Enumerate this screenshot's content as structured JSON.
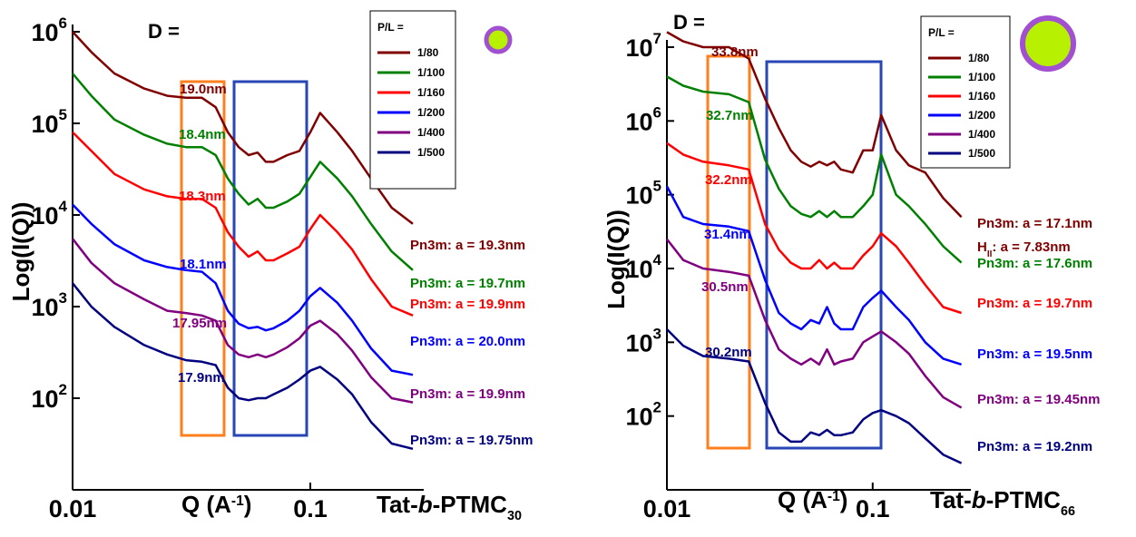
{
  "chart_data": [
    {
      "type": "line",
      "log_x": true,
      "log_y": true,
      "legend": "top-right",
      "y_label": "Log(I(Q))",
      "x_label": [
        {
          "text": "Q (A"
        },
        {
          "text": "-1",
          "shift": "sup"
        },
        {
          "text": ")"
        }
      ],
      "sample_label": [
        {
          "text": "Tat-"
        },
        {
          "text": "b",
          "shift": "italic"
        },
        {
          "text": "-PTMC"
        },
        {
          "text": "30",
          "shift": "sub"
        }
      ],
      "d_title": "D =",
      "legend_title": "P/L =",
      "xlim": [
        0.01,
        0.3
      ],
      "ylim": [
        10,
        1000000
      ],
      "xticks": [
        0.01,
        0.1
      ],
      "yticks": [
        {
          "value": 100,
          "label": "10",
          "exponent": "2"
        },
        {
          "value": 1000,
          "label": "10",
          "exponent": "3"
        },
        {
          "value": 10000,
          "label": "10",
          "exponent": "4"
        },
        {
          "value": 100000,
          "label": "10",
          "exponent": "5"
        },
        {
          "value": 1000000,
          "label": "10",
          "exponent": "6"
        }
      ],
      "x": [
        0.01,
        0.012,
        0.015,
        0.02,
        0.025,
        0.03,
        0.035,
        0.04,
        0.045,
        0.05,
        0.055,
        0.06,
        0.065,
        0.07,
        0.08,
        0.09,
        0.1,
        0.11,
        0.13,
        0.15,
        0.18,
        0.22,
        0.27
      ],
      "series": [
        {
          "name": "1/80",
          "color": "#800000",
          "values": [
            1000000,
            600000,
            350000,
            240000,
            200000,
            190000,
            190000,
            150000,
            80000,
            55000,
            45000,
            48000,
            38000,
            38000,
            45000,
            50000,
            80000,
            130000,
            80000,
            50000,
            25000,
            12000,
            8000
          ]
        },
        {
          "name": "1/100",
          "color": "#008000",
          "values": [
            350000,
            200000,
            110000,
            75000,
            60000,
            55000,
            55000,
            45000,
            25000,
            17000,
            13000,
            15000,
            12000,
            12000,
            14000,
            17000,
            26000,
            38000,
            25000,
            16000,
            8000,
            4000,
            2500
          ]
        },
        {
          "name": "1/160",
          "color": "#ff0000",
          "values": [
            80000,
            50000,
            28000,
            19000,
            16000,
            15000,
            15000,
            12000,
            6500,
            4500,
            3500,
            4000,
            3200,
            3200,
            3800,
            4500,
            7000,
            10000,
            6500,
            4200,
            2000,
            1000,
            800
          ]
        },
        {
          "name": "1/200",
          "color": "#0000ff",
          "values": [
            13000,
            8000,
            4800,
            3200,
            2700,
            2500,
            2400,
            1800,
            900,
            650,
            580,
            600,
            550,
            580,
            700,
            900,
            1300,
            1600,
            1100,
            700,
            350,
            200,
            180
          ]
        },
        {
          "name": "1/400",
          "color": "#800080",
          "values": [
            5500,
            3000,
            1800,
            1200,
            900,
            850,
            800,
            700,
            380,
            300,
            280,
            300,
            280,
            300,
            360,
            450,
            620,
            700,
            500,
            330,
            170,
            100,
            90
          ]
        },
        {
          "name": "1/500",
          "color": "#000080",
          "values": [
            1800,
            1000,
            600,
            380,
            300,
            260,
            250,
            230,
            130,
            100,
            95,
            100,
            100,
            110,
            130,
            160,
            200,
            220,
            160,
            110,
            55,
            32,
            28
          ]
        }
      ],
      "d_labels": [
        "19.0nm",
        "18.4nm",
        "18.3nm",
        "18.1nm",
        "17.95nm",
        "17.9nm"
      ],
      "fit_labels": [
        [
          {
            "text": "Pn3m: a = 19.3nm"
          }
        ],
        [
          {
            "text": "Pn3m: a = 19.7nm"
          }
        ],
        [
          {
            "text": "Pn3m: a = 19.9nm"
          }
        ],
        [
          {
            "text": "Pn3m: a = 20.0nm"
          }
        ],
        [
          {
            "text": "Pn3m: a = 19.9nm"
          }
        ],
        [
          {
            "text": "Pn3m: a = 19.75nm"
          }
        ]
      ]
    },
    {
      "type": "line",
      "log_x": true,
      "log_y": true,
      "legend": "top-right",
      "y_label": "Log(I(Q))",
      "x_label": [
        {
          "text": "Q (A"
        },
        {
          "text": "-1",
          "shift": "sup"
        },
        {
          "text": ")"
        }
      ],
      "sample_label": [
        {
          "text": "Tat-"
        },
        {
          "text": "b",
          "shift": "italic"
        },
        {
          "text": "-PTMC"
        },
        {
          "text": "66",
          "shift": "sub"
        }
      ],
      "d_title": "D =",
      "legend_title": "P/L =",
      "xlim": [
        0.01,
        0.3
      ],
      "ylim": [
        10,
        10000000
      ],
      "xticks": [
        0.01,
        0.1
      ],
      "yticks": [
        {
          "value": 100,
          "label": "10",
          "exponent": "2"
        },
        {
          "value": 1000,
          "label": "10",
          "exponent": "3"
        },
        {
          "value": 10000,
          "label": "10",
          "exponent": "4"
        },
        {
          "value": 100000,
          "label": "10",
          "exponent": "5"
        },
        {
          "value": 1000000,
          "label": "10",
          "exponent": "6"
        },
        {
          "value": 10000000,
          "label": "10",
          "exponent": "7"
        }
      ],
      "x": [
        0.01,
        0.012,
        0.015,
        0.02,
        0.025,
        0.03,
        0.035,
        0.04,
        0.045,
        0.05,
        0.055,
        0.06,
        0.065,
        0.07,
        0.08,
        0.09,
        0.1,
        0.11,
        0.13,
        0.15,
        0.18,
        0.22,
        0.27
      ],
      "series": [
        {
          "name": "1/80",
          "color": "#800000",
          "values": [
            16000000,
            12000000,
            10000000,
            10000000,
            7000000,
            2000000,
            800000,
            400000,
            280000,
            240000,
            280000,
            250000,
            280000,
            220000,
            200000,
            400000,
            400000,
            1200000,
            400000,
            250000,
            200000,
            90000,
            50000
          ]
        },
        {
          "name": "1/100",
          "color": "#008000",
          "values": [
            4000000,
            3000000,
            2500000,
            2300000,
            1800000,
            300000,
            120000,
            70000,
            55000,
            50000,
            60000,
            50000,
            60000,
            50000,
            50000,
            70000,
            100000,
            350000,
            100000,
            70000,
            40000,
            20000,
            12000
          ]
        },
        {
          "name": "1/160",
          "color": "#ff0000",
          "values": [
            500000,
            350000,
            280000,
            250000,
            220000,
            40000,
            18000,
            12000,
            10000,
            10000,
            13000,
            10000,
            12000,
            10000,
            10000,
            15000,
            20000,
            30000,
            20000,
            12000,
            6000,
            3000,
            2500
          ]
        },
        {
          "name": "1/200",
          "color": "#0000ff",
          "values": [
            130000,
            50000,
            40000,
            37000,
            32000,
            7000,
            2500,
            1800,
            1500,
            2000,
            1800,
            3000,
            1800,
            1500,
            1500,
            3000,
            4000,
            5000,
            3000,
            2000,
            1000,
            600,
            500
          ]
        },
        {
          "name": "1/400",
          "color": "#800080",
          "values": [
            25000,
            13000,
            10000,
            9000,
            8000,
            2000,
            800,
            600,
            500,
            600,
            500,
            800,
            500,
            550,
            600,
            1000,
            1200,
            1400,
            1000,
            700,
            350,
            180,
            130
          ]
        },
        {
          "name": "1/500",
          "color": "#000080",
          "values": [
            1500,
            900,
            650,
            600,
            550,
            150,
            60,
            45,
            45,
            60,
            55,
            65,
            55,
            55,
            60,
            90,
            110,
            120,
            100,
            80,
            50,
            30,
            23
          ]
        }
      ],
      "d_labels": [
        "33.8nm",
        "32.7nm",
        "32.2nm",
        "31.4nm",
        "30.5nm",
        "30.2nm"
      ],
      "fit_labels": [
        [
          {
            "text": "Pn3m: a = 17.1nm"
          },
          {
            "text": "H"
          },
          {
            "text": "II",
            "shift": "sub"
          },
          {
            "text": ": a = 7.83nm"
          }
        ],
        [
          {
            "text": "Pn3m: a = 17.6nm"
          }
        ],
        [
          {
            "text": "Pn3m: a = 19.7nm"
          }
        ],
        [
          {
            "text": "Pn3m: a = 19.5nm"
          }
        ],
        [
          {
            "text": "Pn3m: a = 19.45nm"
          }
        ],
        [
          {
            "text": "Pn3m: a = 19.2nm"
          }
        ]
      ]
    }
  ]
}
